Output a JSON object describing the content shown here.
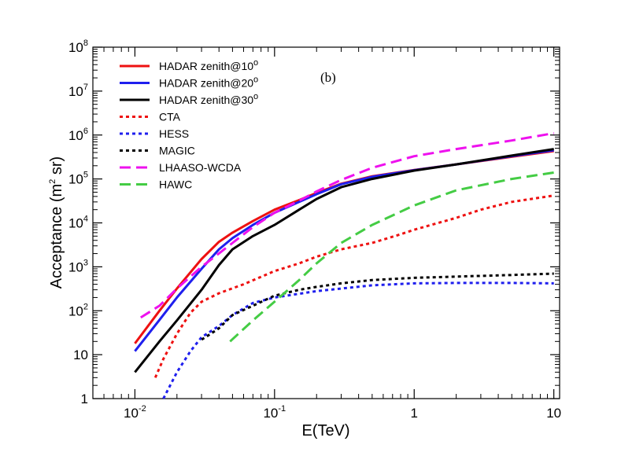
{
  "chart_data": {
    "type": "line",
    "title": "",
    "annotation": "(b)",
    "xlabel": "E(TeV)",
    "ylabel_parts": {
      "main": "Acceptance (m",
      "sup": "2",
      "tail": " sr)"
    },
    "xscale": "log",
    "yscale": "log",
    "xlim": [
      0.005,
      11
    ],
    "ylim": [
      1,
      100000000
    ],
    "grid": false,
    "legend_position": "top-left",
    "x_ticks": [
      {
        "value": 0.01,
        "base": "10",
        "exp": "-2"
      },
      {
        "value": 0.1,
        "base": "10",
        "exp": "-1"
      },
      {
        "value": 1,
        "base": "1",
        "exp": ""
      },
      {
        "value": 10,
        "base": "10",
        "exp": ""
      }
    ],
    "y_ticks": [
      {
        "value": 1,
        "base": "1",
        "exp": ""
      },
      {
        "value": 10,
        "base": "10",
        "exp": ""
      },
      {
        "value": 100,
        "base": "10",
        "exp": "2"
      },
      {
        "value": 1000,
        "base": "10",
        "exp": "3"
      },
      {
        "value": 10000,
        "base": "10",
        "exp": "4"
      },
      {
        "value": 100000,
        "base": "10",
        "exp": "5"
      },
      {
        "value": 1000000,
        "base": "10",
        "exp": "6"
      },
      {
        "value": 10000000,
        "base": "10",
        "exp": "7"
      },
      {
        "value": 100000000,
        "base": "10",
        "exp": "8"
      }
    ],
    "series": [
      {
        "name": "HADAR zenith@10",
        "name_sup": "o",
        "color": "#ee1111",
        "style": "solid",
        "points": [
          [
            0.01,
            18
          ],
          [
            0.015,
            100
          ],
          [
            0.02,
            320
          ],
          [
            0.03,
            1500
          ],
          [
            0.04,
            3700
          ],
          [
            0.05,
            6000
          ],
          [
            0.07,
            11000
          ],
          [
            0.1,
            20000
          ],
          [
            0.15,
            33000
          ],
          [
            0.2,
            48000
          ],
          [
            0.3,
            78000
          ],
          [
            0.5,
            115000
          ],
          [
            1,
            160000
          ],
          [
            2,
            215000
          ],
          [
            5,
            320000
          ],
          [
            10,
            430000
          ]
        ]
      },
      {
        "name": "HADAR zenith@20",
        "name_sup": "o",
        "color": "#1f1fee",
        "style": "solid",
        "points": [
          [
            0.01,
            12
          ],
          [
            0.015,
            62
          ],
          [
            0.02,
            200
          ],
          [
            0.03,
            900
          ],
          [
            0.04,
            2500
          ],
          [
            0.05,
            4500
          ],
          [
            0.07,
            9000
          ],
          [
            0.1,
            17000
          ],
          [
            0.15,
            30000
          ],
          [
            0.2,
            45000
          ],
          [
            0.3,
            76000
          ],
          [
            0.5,
            112000
          ],
          [
            1,
            158000
          ],
          [
            2,
            215000
          ],
          [
            5,
            330000
          ],
          [
            10,
            450000
          ]
        ]
      },
      {
        "name": "HADAR zenith@30",
        "name_sup": "o",
        "color": "#000000",
        "style": "solid",
        "points": [
          [
            0.01,
            4
          ],
          [
            0.015,
            20
          ],
          [
            0.02,
            60
          ],
          [
            0.03,
            300
          ],
          [
            0.04,
            1100
          ],
          [
            0.05,
            2500
          ],
          [
            0.07,
            5000
          ],
          [
            0.1,
            9000
          ],
          [
            0.15,
            20000
          ],
          [
            0.2,
            35000
          ],
          [
            0.3,
            65000
          ],
          [
            0.5,
            100000
          ],
          [
            1,
            155000
          ],
          [
            2,
            215000
          ],
          [
            5,
            340000
          ],
          [
            10,
            480000
          ]
        ]
      },
      {
        "name": "CTA",
        "name_sup": "",
        "color": "#ee1111",
        "style": "dot",
        "points": [
          [
            0.014,
            3
          ],
          [
            0.016,
            8
          ],
          [
            0.02,
            30
          ],
          [
            0.025,
            90
          ],
          [
            0.03,
            160
          ],
          [
            0.04,
            250
          ],
          [
            0.06,
            400
          ],
          [
            0.1,
            800
          ],
          [
            0.15,
            1200
          ],
          [
            0.2,
            1700
          ],
          [
            0.3,
            2500
          ],
          [
            0.5,
            3500
          ],
          [
            0.8,
            5500
          ],
          [
            1,
            7000
          ],
          [
            2,
            13000
          ],
          [
            3,
            20000
          ],
          [
            5,
            30000
          ],
          [
            10,
            42000
          ]
        ]
      },
      {
        "name": "HESS",
        "name_sup": "",
        "color": "#1f1fee",
        "style": "dot",
        "points": [
          [
            0.016,
            1
          ],
          [
            0.02,
            4
          ],
          [
            0.025,
            12
          ],
          [
            0.03,
            25
          ],
          [
            0.04,
            45
          ],
          [
            0.05,
            80
          ],
          [
            0.07,
            150
          ],
          [
            0.1,
            200
          ],
          [
            0.2,
            280
          ],
          [
            0.5,
            380
          ],
          [
            1,
            420
          ],
          [
            2,
            430
          ],
          [
            5,
            430
          ],
          [
            10,
            420
          ]
        ]
      },
      {
        "name": "MAGIC",
        "name_sup": "",
        "color": "#000000",
        "style": "dot",
        "points": [
          [
            0.03,
            22
          ],
          [
            0.035,
            30
          ],
          [
            0.04,
            40
          ],
          [
            0.05,
            80
          ],
          [
            0.07,
            130
          ],
          [
            0.1,
            220
          ],
          [
            0.15,
            300
          ],
          [
            0.2,
            350
          ],
          [
            0.3,
            420
          ],
          [
            0.5,
            500
          ],
          [
            1,
            560
          ],
          [
            2,
            600
          ],
          [
            5,
            650
          ],
          [
            10,
            700
          ]
        ]
      },
      {
        "name": "LHAASO-WCDA",
        "name_sup": "",
        "color": "#ee11ee",
        "style": "dash",
        "points": [
          [
            0.011,
            70
          ],
          [
            0.015,
            130
          ],
          [
            0.02,
            320
          ],
          [
            0.03,
            1000
          ],
          [
            0.05,
            3500
          ],
          [
            0.07,
            8000
          ],
          [
            0.1,
            17000
          ],
          [
            0.15,
            32000
          ],
          [
            0.2,
            52000
          ],
          [
            0.3,
            95000
          ],
          [
            0.5,
            180000
          ],
          [
            1,
            330000
          ],
          [
            2,
            480000
          ],
          [
            5,
            750000
          ],
          [
            10,
            1100000
          ]
        ]
      },
      {
        "name": "HAWC",
        "name_sup": "",
        "color": "#44cc44",
        "style": "dash",
        "points": [
          [
            0.048,
            20
          ],
          [
            0.07,
            60
          ],
          [
            0.1,
            160
          ],
          [
            0.15,
            500
          ],
          [
            0.2,
            1200
          ],
          [
            0.3,
            3500
          ],
          [
            0.5,
            9000
          ],
          [
            1,
            25000
          ],
          [
            2,
            55000
          ],
          [
            5,
            100000
          ],
          [
            10,
            140000
          ]
        ]
      }
    ]
  }
}
